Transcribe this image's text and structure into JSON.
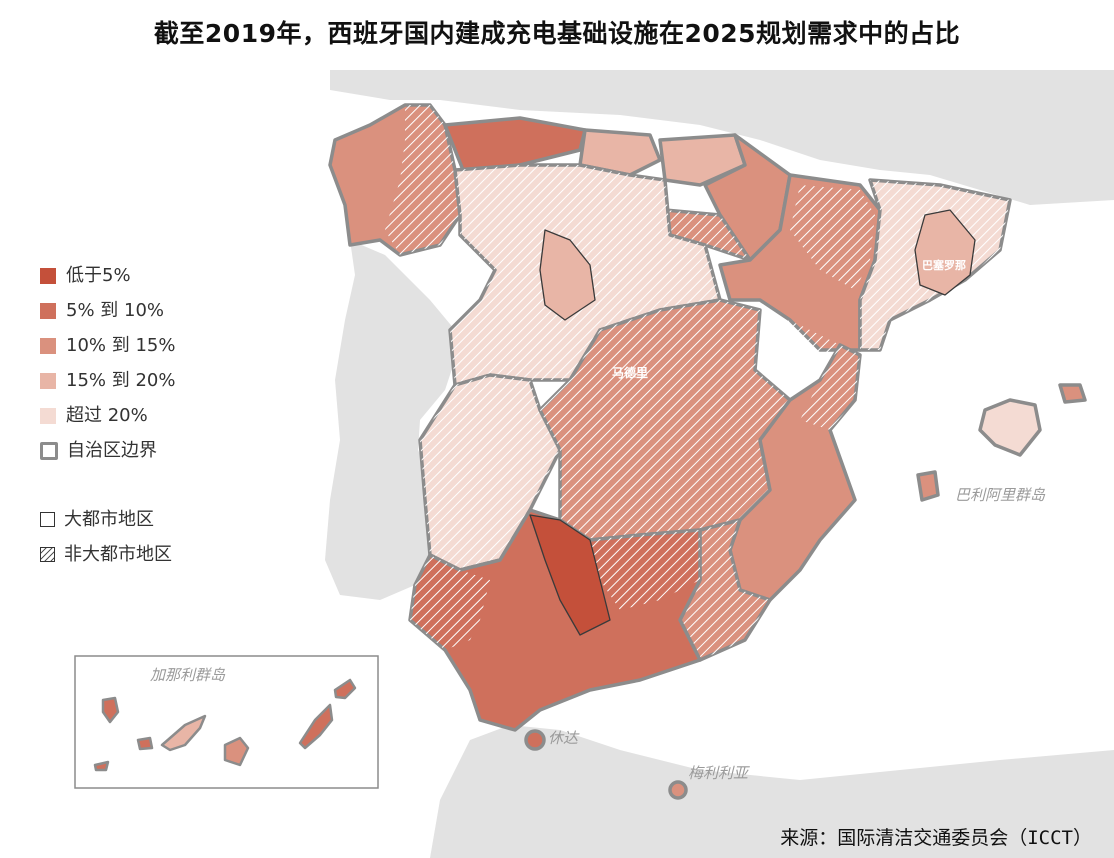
{
  "title": "截至2019年，西班牙国内建成充电基础设施在2025规划需求中的占比",
  "legend": {
    "items": [
      {
        "label": "低于5%",
        "color": "#c4503a"
      },
      {
        "label": "5% 到 10%",
        "color": "#cf705c"
      },
      {
        "label": "10% 到 15%",
        "color": "#da917e"
      },
      {
        "label": "15% 到 20%",
        "color": "#e8b5a6"
      },
      {
        "label": "超过 20%",
        "color": "#f4dbd3"
      }
    ],
    "boundary_label": "自治区边界",
    "metro_label": "大都市地区",
    "non_metro_label": "非大都市地区"
  },
  "places": {
    "madrid": "马德里",
    "barcelona": "巴塞罗那",
    "balearic": "巴利阿里群岛",
    "canary": "加那利群岛",
    "ceuta": "休达",
    "melilla": "梅利利亚"
  },
  "source": "来源：国际清洁交通委员会（ICCT）",
  "colors": {
    "sea": "#ffffff",
    "land_outside": "#e2e2e2",
    "border_autonomous": "#8c8c8c",
    "border_province": "#3a3a3a"
  }
}
